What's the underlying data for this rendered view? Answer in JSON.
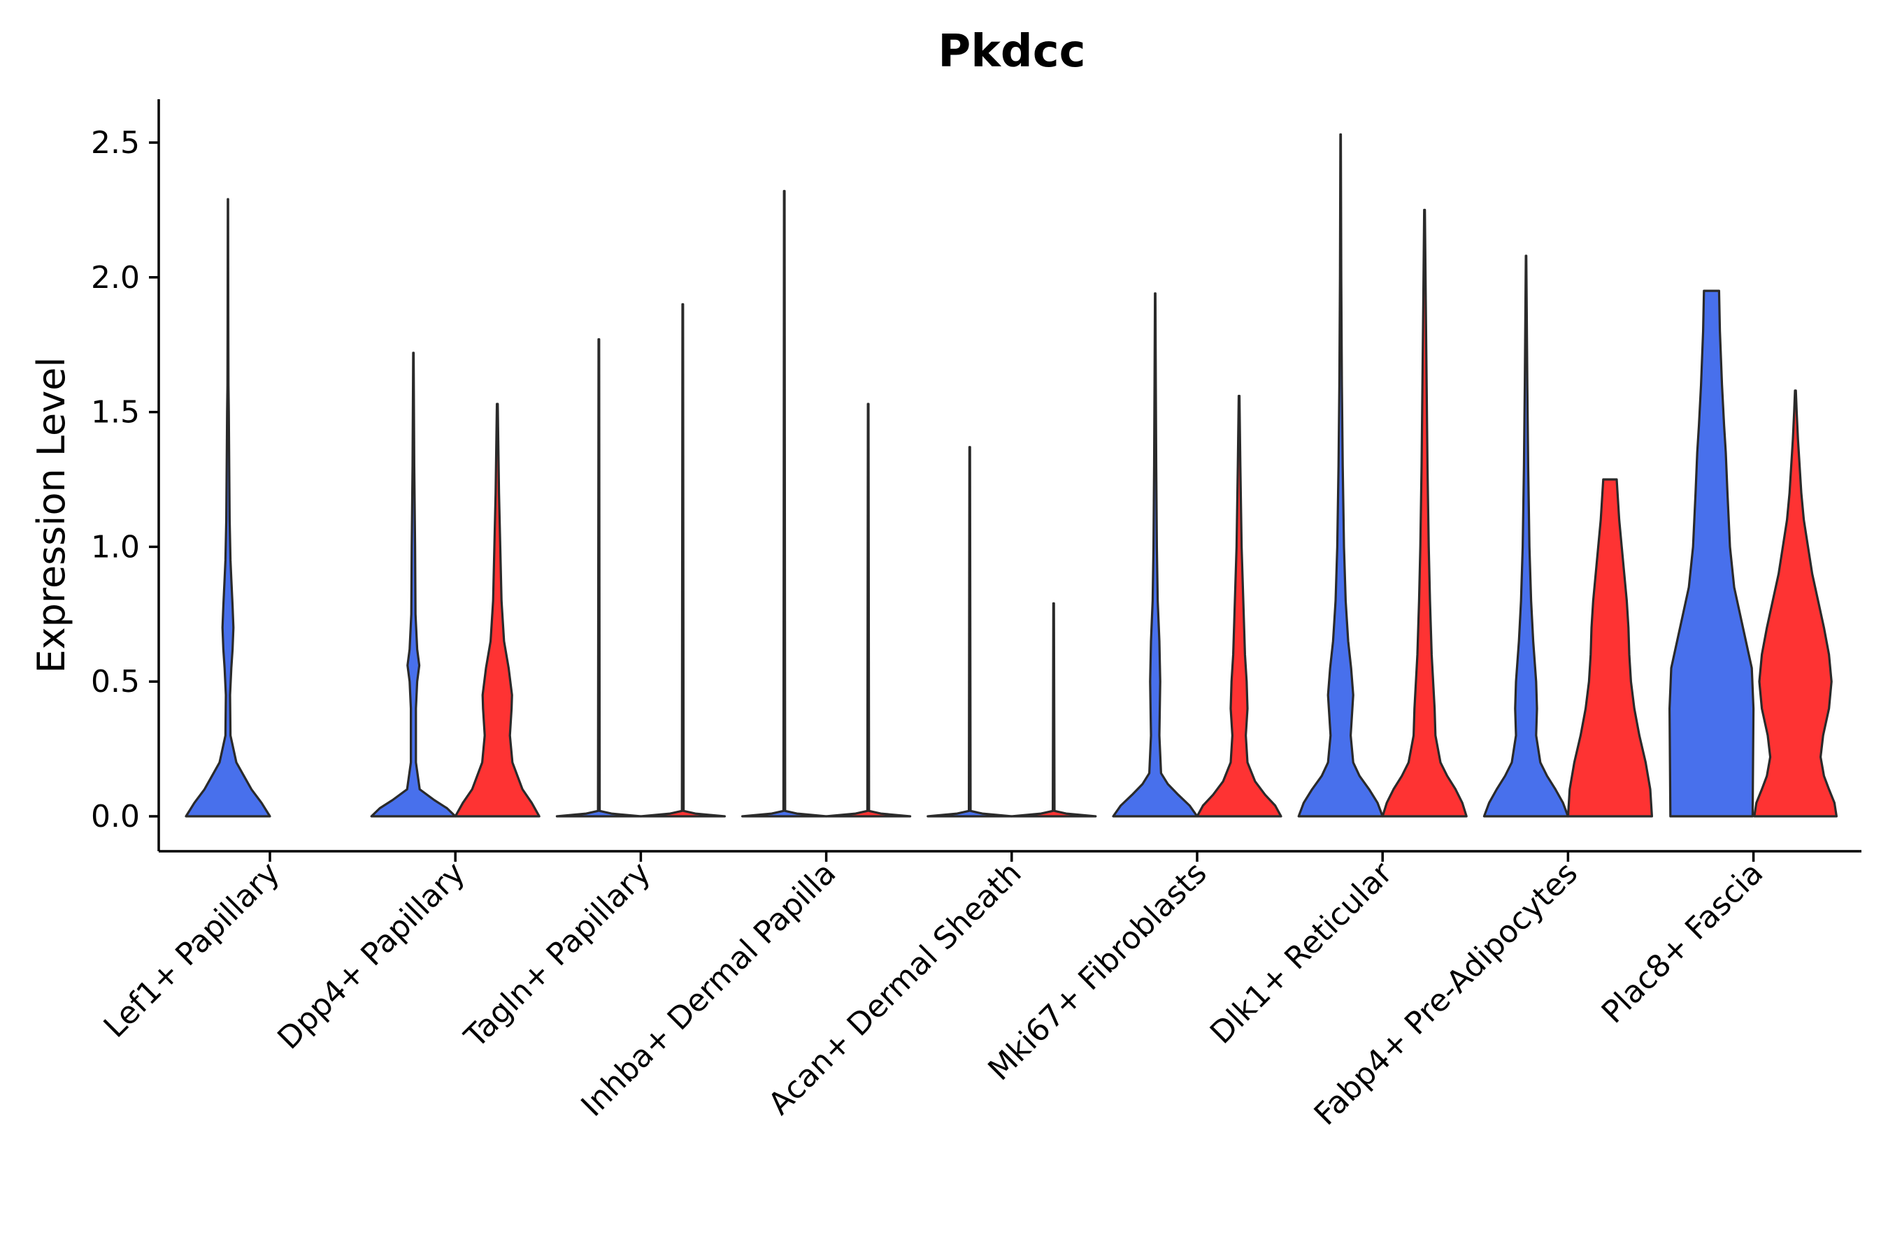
{
  "chart_data": {
    "type": "violin",
    "title": "Pkdcc",
    "xlabel": "",
    "ylabel": "Expression Level",
    "ylim": [
      -0.13,
      2.66
    ],
    "yticks": [
      "0.0",
      "0.5",
      "1.0",
      "1.5",
      "2.0",
      "2.5"
    ],
    "ytick_values": [
      0,
      0.5,
      1.0,
      1.5,
      2.0,
      2.5
    ],
    "grid": false,
    "legend": "none",
    "colors": {
      "group_a": "#4870ec",
      "group_b": "#fe3333"
    },
    "categories": [
      "Lef1+ Papillary",
      "Dpp4+ Papillary",
      "Tagln+ Papillary",
      "Inhba+ Dermal Papilla",
      "Acan+ Dermal Sheath",
      "Mki67+ Fibroblasts",
      "Dlk1+ Reticular",
      "Fabp4+ Pre-Adipocytes",
      "Plac8+ Fascia"
    ],
    "series": [
      {
        "name": "group_a",
        "color": "#4870ec",
        "violins": [
          {
            "category": "Lef1+ Papillary",
            "max": 2.29,
            "profile": [
              [
                0,
                1.0
              ],
              [
                0.05,
                0.8
              ],
              [
                0.1,
                0.56
              ],
              [
                0.15,
                0.38
              ],
              [
                0.2,
                0.2
              ],
              [
                0.3,
                0.06
              ],
              [
                0.45,
                0.05
              ],
              [
                0.55,
                0.08
              ],
              [
                0.62,
                0.11
              ],
              [
                0.7,
                0.13
              ],
              [
                0.78,
                0.11
              ],
              [
                0.88,
                0.08
              ],
              [
                0.95,
                0.06
              ],
              [
                1.1,
                0.04
              ],
              [
                1.3,
                0.03
              ],
              [
                1.5,
                0.02
              ],
              [
                1.6,
                0.012
              ],
              [
                1.8,
                0.008
              ],
              [
                2.29,
                0.003
              ]
            ]
          },
          {
            "category": "Dpp4+ Papillary",
            "max": 1.72,
            "profile": [
              [
                0,
                1.0
              ],
              [
                0.03,
                0.8
              ],
              [
                0.06,
                0.5
              ],
              [
                0.1,
                0.15
              ],
              [
                0.2,
                0.06
              ],
              [
                0.4,
                0.06
              ],
              [
                0.5,
                0.09
              ],
              [
                0.56,
                0.14
              ],
              [
                0.62,
                0.09
              ],
              [
                0.75,
                0.05
              ],
              [
                1.0,
                0.04
              ],
              [
                1.3,
                0.02
              ],
              [
                1.72,
                0.005
              ]
            ]
          },
          {
            "category": "Tagln+ Papillary",
            "max": 1.77,
            "profile": [
              [
                0,
                1.0
              ],
              [
                0.01,
                0.3
              ],
              [
                0.02,
                0.02
              ],
              [
                1.77,
                0.006
              ]
            ]
          },
          {
            "category": "Inhba+ Dermal Papilla",
            "max": 2.32,
            "profile": [
              [
                0,
                1.0
              ],
              [
                0.01,
                0.3
              ],
              [
                0.02,
                0.02
              ],
              [
                2.32,
                0.006
              ]
            ]
          },
          {
            "category": "Acan+ Dermal Sheath",
            "max": 1.37,
            "profile": [
              [
                0,
                1.0
              ],
              [
                0.01,
                0.3
              ],
              [
                0.02,
                0.02
              ],
              [
                1.37,
                0.006
              ]
            ]
          },
          {
            "category": "Mki67+ Fibroblasts",
            "max": 1.94,
            "profile": [
              [
                0,
                1.0
              ],
              [
                0.04,
                0.82
              ],
              [
                0.08,
                0.55
              ],
              [
                0.12,
                0.3
              ],
              [
                0.16,
                0.14
              ],
              [
                0.3,
                0.1
              ],
              [
                0.5,
                0.12
              ],
              [
                0.65,
                0.1
              ],
              [
                0.8,
                0.06
              ],
              [
                1.0,
                0.04
              ],
              [
                1.3,
                0.025
              ],
              [
                1.6,
                0.015
              ],
              [
                1.94,
                0.005
              ]
            ]
          },
          {
            "category": "Dlk1+ Reticular",
            "max": 2.53,
            "profile": [
              [
                0,
                1.0
              ],
              [
                0.05,
                0.88
              ],
              [
                0.1,
                0.68
              ],
              [
                0.15,
                0.45
              ],
              [
                0.2,
                0.3
              ],
              [
                0.3,
                0.24
              ],
              [
                0.4,
                0.28
              ],
              [
                0.45,
                0.3
              ],
              [
                0.55,
                0.25
              ],
              [
                0.65,
                0.18
              ],
              [
                0.8,
                0.12
              ],
              [
                1.0,
                0.08
              ],
              [
                1.3,
                0.05
              ],
              [
                1.6,
                0.03
              ],
              [
                2.0,
                0.015
              ],
              [
                2.53,
                0.005
              ]
            ]
          },
          {
            "category": "Fabp4+ Pre-Adipocytes",
            "max": 2.08,
            "profile": [
              [
                0,
                1.0
              ],
              [
                0.05,
                0.88
              ],
              [
                0.1,
                0.7
              ],
              [
                0.15,
                0.5
              ],
              [
                0.2,
                0.34
              ],
              [
                0.3,
                0.24
              ],
              [
                0.4,
                0.26
              ],
              [
                0.5,
                0.24
              ],
              [
                0.65,
                0.17
              ],
              [
                0.8,
                0.12
              ],
              [
                1.0,
                0.08
              ],
              [
                1.3,
                0.05
              ],
              [
                1.6,
                0.03
              ],
              [
                2.08,
                0.005
              ]
            ]
          },
          {
            "category": "Plac8+ Fascia",
            "max": 1.95,
            "profile": [
              [
                0,
                0.98
              ],
              [
                0.2,
                0.99
              ],
              [
                0.4,
                1.0
              ],
              [
                0.55,
                0.96
              ],
              [
                0.7,
                0.75
              ],
              [
                0.85,
                0.54
              ],
              [
                1.0,
                0.44
              ],
              [
                1.2,
                0.38
              ],
              [
                1.35,
                0.34
              ],
              [
                1.45,
                0.3
              ],
              [
                1.6,
                0.25
              ],
              [
                1.8,
                0.2
              ],
              [
                1.95,
                0.18
              ]
            ]
          }
        ]
      },
      {
        "name": "group_b",
        "color": "#fe3333",
        "violins": [
          {
            "category": "Dpp4+ Papillary",
            "max": 1.53,
            "profile": [
              [
                0,
                1.0
              ],
              [
                0.05,
                0.82
              ],
              [
                0.1,
                0.6
              ],
              [
                0.2,
                0.36
              ],
              [
                0.3,
                0.3
              ],
              [
                0.4,
                0.34
              ],
              [
                0.45,
                0.35
              ],
              [
                0.55,
                0.27
              ],
              [
                0.65,
                0.16
              ],
              [
                0.8,
                0.1
              ],
              [
                1.0,
                0.07
              ],
              [
                1.2,
                0.04
              ],
              [
                1.53,
                0.01
              ]
            ]
          },
          {
            "category": "Tagln+ Papillary",
            "max": 1.9,
            "profile": [
              [
                0,
                1.0
              ],
              [
                0.01,
                0.3
              ],
              [
                0.02,
                0.02
              ],
              [
                1.9,
                0.006
              ]
            ]
          },
          {
            "category": "Inhba+ Dermal Papilla",
            "max": 1.53,
            "profile": [
              [
                0,
                1.0
              ],
              [
                0.01,
                0.3
              ],
              [
                0.02,
                0.02
              ],
              [
                1.53,
                0.006
              ]
            ]
          },
          {
            "category": "Acan+ Dermal Sheath",
            "max": 0.79,
            "profile": [
              [
                0,
                1.0
              ],
              [
                0.01,
                0.3
              ],
              [
                0.02,
                0.02
              ],
              [
                0.79,
                0.006
              ]
            ]
          },
          {
            "category": "Mki67+ Fibroblasts",
            "max": 1.56,
            "profile": [
              [
                0,
                1.0
              ],
              [
                0.04,
                0.86
              ],
              [
                0.08,
                0.62
              ],
              [
                0.13,
                0.38
              ],
              [
                0.2,
                0.2
              ],
              [
                0.3,
                0.16
              ],
              [
                0.4,
                0.2
              ],
              [
                0.5,
                0.18
              ],
              [
                0.6,
                0.14
              ],
              [
                0.8,
                0.1
              ],
              [
                1.0,
                0.06
              ],
              [
                1.3,
                0.03
              ],
              [
                1.56,
                0.008
              ]
            ]
          },
          {
            "category": "Dlk1+ Reticular",
            "max": 2.25,
            "profile": [
              [
                0,
                1.0
              ],
              [
                0.05,
                0.9
              ],
              [
                0.1,
                0.74
              ],
              [
                0.15,
                0.54
              ],
              [
                0.2,
                0.38
              ],
              [
                0.3,
                0.26
              ],
              [
                0.4,
                0.24
              ],
              [
                0.6,
                0.17
              ],
              [
                0.8,
                0.13
              ],
              [
                1.0,
                0.1
              ],
              [
                1.3,
                0.07
              ],
              [
                1.6,
                0.05
              ],
              [
                1.9,
                0.03
              ],
              [
                2.25,
                0.008
              ]
            ]
          },
          {
            "category": "Fabp4+ Pre-Adipocytes",
            "max": 1.25,
            "profile": [
              [
                0,
                1.0
              ],
              [
                0.1,
                0.96
              ],
              [
                0.2,
                0.85
              ],
              [
                0.3,
                0.7
              ],
              [
                0.4,
                0.58
              ],
              [
                0.5,
                0.5
              ],
              [
                0.6,
                0.46
              ],
              [
                0.7,
                0.44
              ],
              [
                0.8,
                0.4
              ],
              [
                0.9,
                0.34
              ],
              [
                1.0,
                0.28
              ],
              [
                1.1,
                0.22
              ],
              [
                1.2,
                0.18
              ],
              [
                1.25,
                0.16
              ]
            ]
          },
          {
            "category": "Plac8+ Fascia",
            "max": 1.58,
            "profile": [
              [
                0,
                0.98
              ],
              [
                0.05,
                0.93
              ],
              [
                0.1,
                0.8
              ],
              [
                0.15,
                0.68
              ],
              [
                0.22,
                0.6
              ],
              [
                0.3,
                0.66
              ],
              [
                0.4,
                0.8
              ],
              [
                0.5,
                0.86
              ],
              [
                0.6,
                0.8
              ],
              [
                0.7,
                0.68
              ],
              [
                0.8,
                0.54
              ],
              [
                0.9,
                0.4
              ],
              [
                1.0,
                0.3
              ],
              [
                1.1,
                0.2
              ],
              [
                1.2,
                0.14
              ],
              [
                1.3,
                0.1
              ],
              [
                1.4,
                0.06
              ],
              [
                1.5,
                0.03
              ],
              [
                1.58,
                0.01
              ]
            ]
          }
        ]
      }
    ]
  }
}
